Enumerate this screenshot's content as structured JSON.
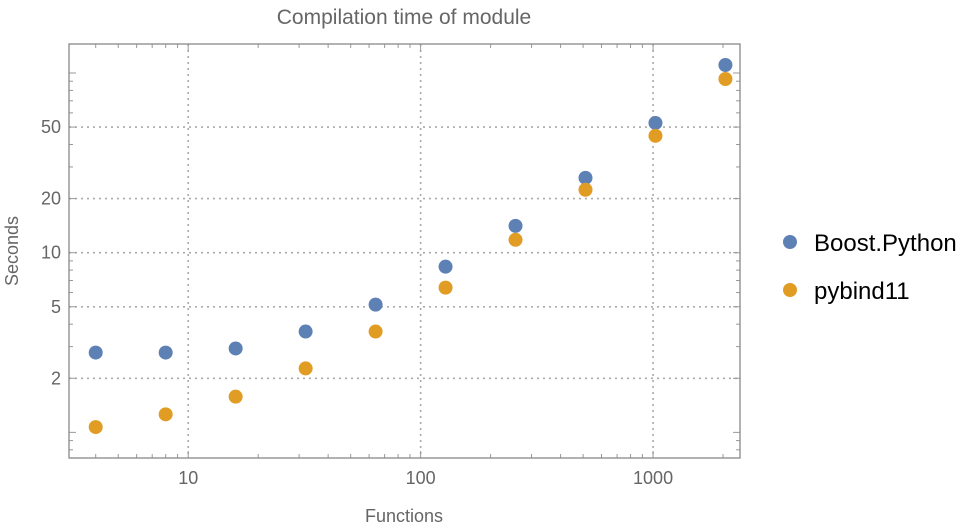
{
  "chart_data": {
    "type": "scatter",
    "title": "Compilation time of module",
    "xlabel": "Functions",
    "ylabel": "Seconds",
    "xscale": "log",
    "yscale": "log",
    "xlim": [
      3.07,
      2366
    ],
    "ylim": [
      0.72,
      145
    ],
    "grid": true,
    "legend_position": "right",
    "xticks": [
      10,
      100,
      1000
    ],
    "xtick_labels": [
      "10",
      "100",
      "1000"
    ],
    "yticks": [
      2,
      5,
      10,
      20,
      50
    ],
    "ytick_labels": [
      "2",
      "5",
      "10",
      "20",
      "50"
    ],
    "x": [
      4,
      8,
      16,
      32,
      64,
      128,
      256,
      512,
      1024,
      2048
    ],
    "series": [
      {
        "name": "Boost.Python",
        "color": "#5E81B5",
        "values": [
          2.78,
          2.78,
          2.93,
          3.64,
          5.14,
          8.36,
          14.1,
          26.1,
          52.7,
          110.8
        ]
      },
      {
        "name": "pybind11",
        "color": "#E19C24",
        "values": [
          1.07,
          1.26,
          1.58,
          2.27,
          3.64,
          6.39,
          11.8,
          22.4,
          44.7,
          92.6
        ]
      }
    ]
  }
}
